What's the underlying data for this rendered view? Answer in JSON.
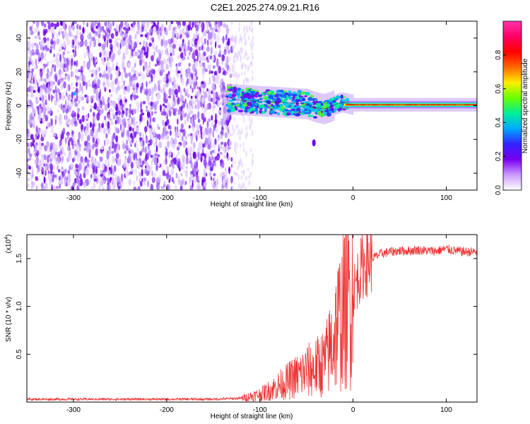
{
  "title": "C2E1.2025.274.09.21.R16",
  "chart_data": [
    {
      "type": "heatmap",
      "xlabel": "Height of straight line (km)",
      "ylabel": "Frequency (Hz)",
      "xlim": [
        -350,
        133
      ],
      "ylim": [
        -50,
        50
      ],
      "xticks": [
        -300,
        -200,
        -100,
        0,
        100
      ],
      "yticks": [
        -40,
        -20,
        0,
        20,
        40
      ],
      "colorbar": {
        "label": "Normalized spectral amplitude",
        "range": [
          0,
          1
        ],
        "ticks": [
          0.0,
          0.2,
          0.4,
          0.6,
          0.8
        ],
        "tick_labels": [
          "0.0",
          "0.2",
          "0.4",
          "0.6",
          "0.8"
        ],
        "stops": [
          "#ffffff",
          "#cc99ff",
          "#7700ee",
          "#3322ff",
          "#00aaff",
          "#00ee99",
          "#66ff00",
          "#ffee00",
          "#ff6600",
          "#ff0000",
          "#ff0066",
          "#ff33aa"
        ]
      },
      "carrier": {
        "segments": [
          {
            "x": [
              -135,
              -125,
              -110,
              -95,
              -80,
              -65,
              -50,
              -40,
              -32,
              -25,
              -18,
              -12,
              -8,
              -4,
              0,
              133
            ],
            "y": [
              4,
              3.5,
              3,
              2.5,
              2,
              1.5,
              1,
              -1,
              -2,
              -1,
              1,
              2,
              1.5,
              1,
              0.5,
              0.5
            ]
          }
        ],
        "noise_region_x": [
          -350,
          -130
        ],
        "tail_point": {
          "x": -42,
          "y": -22
        }
      }
    },
    {
      "type": "line",
      "xlabel": "Height of straight line (km)",
      "ylabel": "SNR (10 * v/v)",
      "yscale_note": "(x10",
      "yscale_exp": "4",
      "xlim": [
        -350,
        133
      ],
      "ylim": [
        0,
        1.75
      ],
      "xticks": [
        -300,
        -200,
        -100,
        0,
        100
      ],
      "yticks": [
        0.5,
        1.0,
        1.5
      ],
      "ytick_labels": [
        "0.5",
        "1.0",
        "1.5"
      ],
      "series": [
        {
          "name": "SNR",
          "color": "#ee3333",
          "x": [
            -350,
            -300,
            -250,
            -200,
            -150,
            -120,
            -110,
            -100,
            -90,
            -80,
            -70,
            -60,
            -50,
            -40,
            -30,
            -25,
            -20,
            -15,
            -10,
            -5,
            0,
            5,
            10,
            20,
            30,
            40,
            50,
            60,
            70,
            80,
            90,
            100,
            110,
            120,
            133
          ],
          "y": [
            0.03,
            0.03,
            0.03,
            0.03,
            0.03,
            0.04,
            0.06,
            0.08,
            0.12,
            0.17,
            0.22,
            0.27,
            0.32,
            0.36,
            0.42,
            0.55,
            0.7,
            0.85,
            0.95,
            1.05,
            1.15,
            1.3,
            1.42,
            1.5,
            1.55,
            1.57,
            1.58,
            1.58,
            1.59,
            1.58,
            1.58,
            1.6,
            1.58,
            1.57,
            1.57
          ]
        }
      ]
    }
  ]
}
